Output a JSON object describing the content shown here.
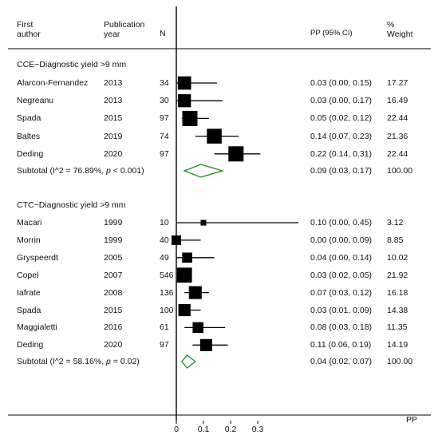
{
  "headers": {
    "author": "First author",
    "author_l1": "First",
    "author_l2": "author",
    "year_l1": "Publication",
    "year_l2": "year",
    "n": "N",
    "ci": "PP (95% CI)",
    "weight_l1": "%",
    "weight_l2": "Weight"
  },
  "chart_data": {
    "type": "forest",
    "x_axis": {
      "label": "PP",
      "ticks": [
        0,
        0.1,
        0.2,
        0.3
      ],
      "tick_labels": [
        "0",
        "0.1",
        "0.2",
        "0.3"
      ],
      "null_line": 0
    },
    "groups": [
      {
        "title": "CCE−Diagnostic yield >9 mm",
        "studies": [
          {
            "author": "Alarcon-Fernandez",
            "year": "2013",
            "n": "34",
            "pp": 0.03,
            "lo": 0.0,
            "hi": 0.15,
            "ci_text": "0.03 (0.00, 0.15)",
            "weight": "17.27",
            "weight_value": 17.27
          },
          {
            "author": "Negreanu",
            "year": "2013",
            "n": "30",
            "pp": 0.03,
            "lo": 0.0,
            "hi": 0.17,
            "ci_text": "0.03 (0.00, 0.17)",
            "weight": "16.49",
            "weight_value": 16.49
          },
          {
            "author": "Spada",
            "year": "2015",
            "n": "97",
            "pp": 0.05,
            "lo": 0.02,
            "hi": 0.12,
            "ci_text": "0.05 (0.02, 0.12)",
            "weight": "22.44",
            "weight_value": 22.44
          },
          {
            "author": "Baltes",
            "year": "2019",
            "n": "74",
            "pp": 0.14,
            "lo": 0.07,
            "hi": 0.23,
            "ci_text": "0.14 (0.07, 0.23)",
            "weight": "21.36",
            "weight_value": 21.36
          },
          {
            "author": "Deding",
            "year": "2020",
            "n": "97",
            "pp": 0.22,
            "lo": 0.14,
            "hi": 0.31,
            "ci_text": "0.22 (0.14, 0.31)",
            "weight": "22.44",
            "weight_value": 22.44
          }
        ],
        "subtotal": {
          "label_pre": "Subtotal  (I^2 = 76.89%, ",
          "label_p": "p",
          "label_post": " < 0.001)",
          "pp": 0.09,
          "lo": 0.03,
          "hi": 0.17,
          "ci_text": "0.09 (0.03, 0.17)",
          "weight": "100.00"
        }
      },
      {
        "title": "CTC−Diagnostic yield >9 mm",
        "studies": [
          {
            "author": "Macari",
            "year": "1999",
            "n": "10",
            "pp": 0.1,
            "lo": 0.0,
            "hi": 0.45,
            "ci_text": "0.10 (0.00, 0.45)",
            "weight": "3.12",
            "weight_value": 3.12
          },
          {
            "author": "Morrin",
            "year": "1999",
            "n": "40",
            "pp": 0.0,
            "lo": 0.0,
            "hi": 0.09,
            "ci_text": "0.00 (0.00, 0.09)",
            "weight": "8.85",
            "weight_value": 8.85
          },
          {
            "author": "Gryspeerdt",
            "year": "2005",
            "n": "49",
            "pp": 0.04,
            "lo": 0.0,
            "hi": 0.14,
            "ci_text": "0.04 (0.00, 0.14)",
            "weight": "10.02",
            "weight_value": 10.02
          },
          {
            "author": "Copel",
            "year": "2007",
            "n": "546",
            "pp": 0.03,
            "lo": 0.02,
            "hi": 0.05,
            "ci_text": "0.03 (0.02, 0.05)",
            "weight": "21.92",
            "weight_value": 21.92
          },
          {
            "author": "Iafrate",
            "year": "2008",
            "n": "136",
            "pp": 0.07,
            "lo": 0.03,
            "hi": 0.12,
            "ci_text": "0.07 (0.03, 0.12)",
            "weight": "16.18",
            "weight_value": 16.18
          },
          {
            "author": "Spada",
            "year": "2015",
            "n": "100",
            "pp": 0.03,
            "lo": 0.01,
            "hi": 0.09,
            "ci_text": "0.03 (0.01, 0.09)",
            "weight": "14.38",
            "weight_value": 14.38
          },
          {
            "author": "Maggialetti",
            "year": "2016",
            "n": "61",
            "pp": 0.08,
            "lo": 0.03,
            "hi": 0.18,
            "ci_text": "0.08 (0.03, 0.18)",
            "weight": "11.35",
            "weight_value": 11.35
          },
          {
            "author": "Deding",
            "year": "2020",
            "n": "97",
            "pp": 0.11,
            "lo": 0.06,
            "hi": 0.19,
            "ci_text": "0.11 (0.06, 0.19)",
            "weight": "14.19",
            "weight_value": 14.19
          }
        ],
        "subtotal": {
          "label_pre": "Subtotal  (I^2 = 58.16%, ",
          "label_p": "p",
          "label_post": " = 0.02)",
          "pp": 0.04,
          "lo": 0.02,
          "hi": 0.07,
          "ci_text": "0.04 (0.02, 0.07)",
          "weight": "100.00"
        }
      }
    ],
    "colors": {
      "marker": "#000000",
      "diamond": "#1a8a1a",
      "line": "#000000"
    }
  }
}
